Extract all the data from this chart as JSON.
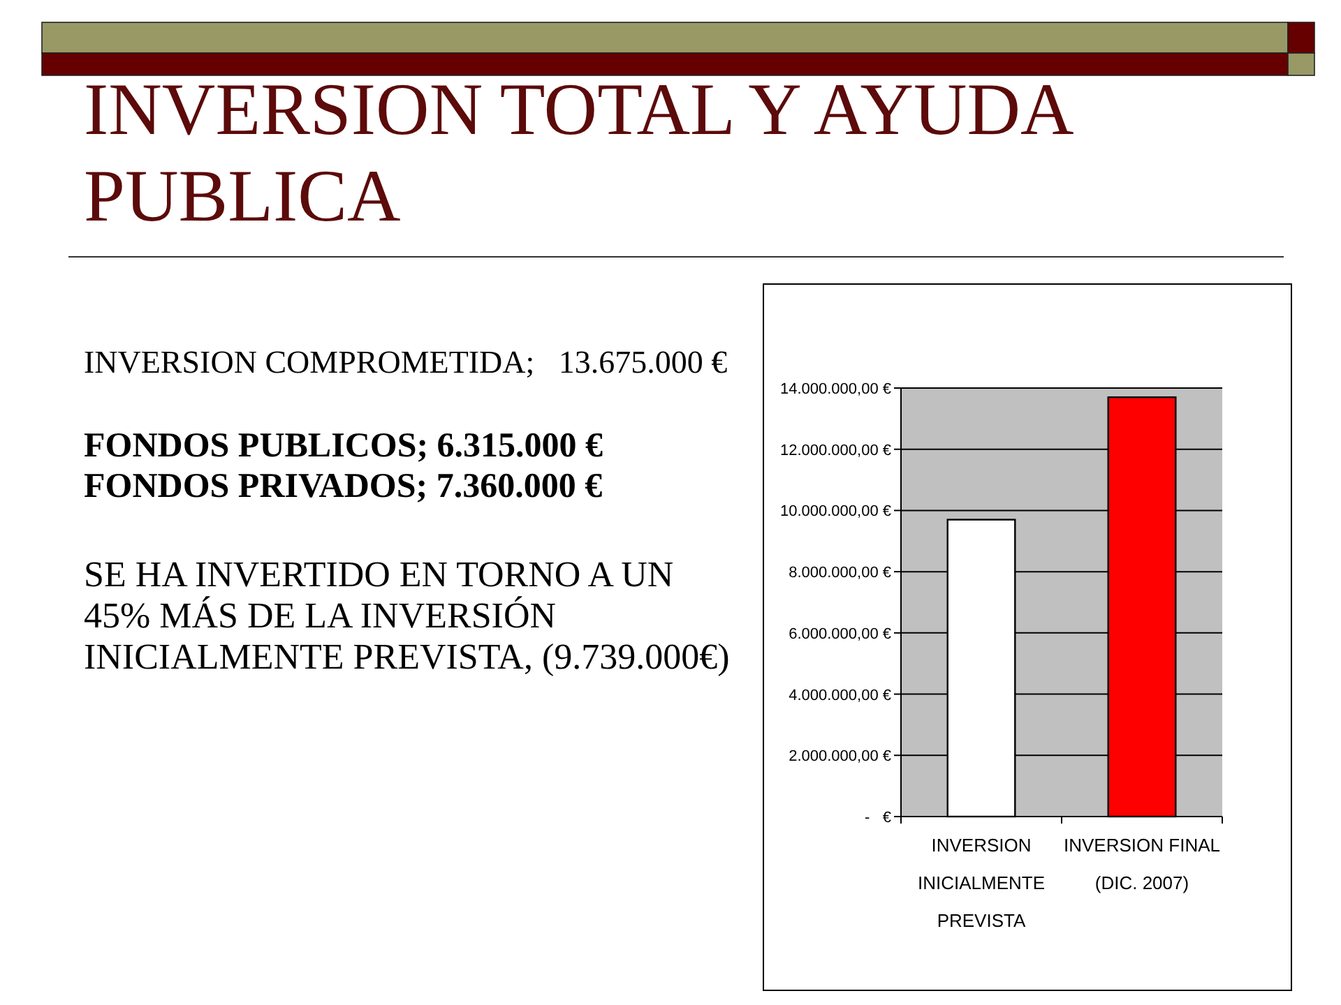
{
  "chart_data": {
    "type": "bar",
    "title": "INVERSION TOTAL Y AYUDA PUBLICA",
    "categories": [
      "INVERSION INICIALMENTE PREVISTA",
      "INVERSION FINAL (DIC. 2007)"
    ],
    "values": [
      9700000,
      13700000
    ],
    "colors": [
      "#ffffff",
      "#ff0000"
    ],
    "ylim": [
      0,
      14000000
    ],
    "yticks": [
      {
        "value": 0,
        "label": "-   €"
      },
      {
        "value": 2000000,
        "label": "2.000.000,00 €"
      },
      {
        "value": 4000000,
        "label": "4.000.000,00 €"
      },
      {
        "value": 6000000,
        "label": "6.000.000,00 €"
      },
      {
        "value": 8000000,
        "label": "8.000.000,00 €"
      },
      {
        "value": 10000000,
        "label": "10.000.000,00 €"
      },
      {
        "value": 12000000,
        "label": "12.000.000,00 €"
      },
      {
        "value": 14000000,
        "label": "14.000.000,00 €"
      }
    ],
    "grid": "y",
    "annotations": [
      "INVERSION COMPROMETIDA;   13.675.000 €",
      "FONDOS PUBLICOS; 6.315.000 €",
      "FONDOS PRIVADOS; 7.360.000 €",
      "SE HA INVERTIDO EN TORNO A UN 45% MÁS DE LA INVERSIÓN INICIALMENTE PREVISTA, (9.739.000€)"
    ]
  }
}
